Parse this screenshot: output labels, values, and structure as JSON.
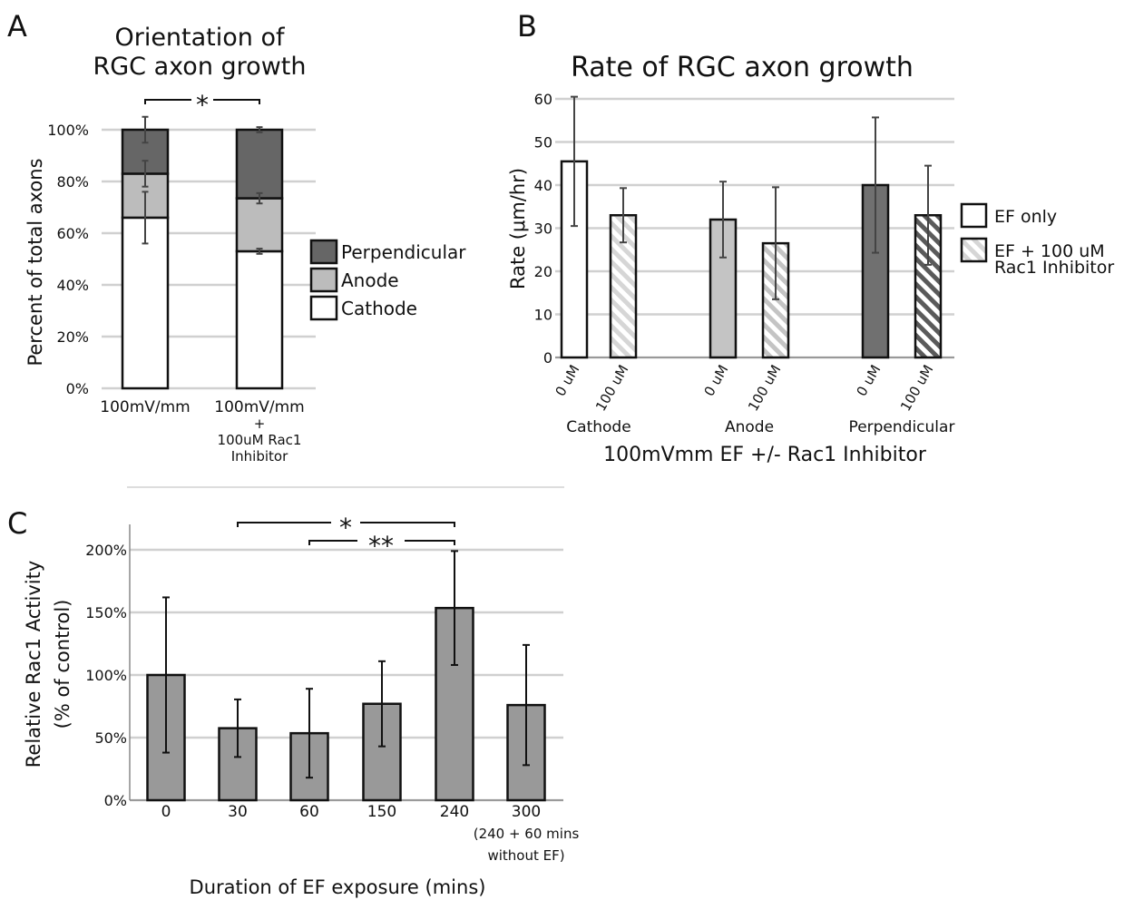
{
  "chart_data": [
    {
      "panel": "A",
      "type": "bar",
      "stacked": true,
      "title": "Orientation of RGC axon growth",
      "title_lines": [
        "Orientation of",
        "RGC axon growth"
      ],
      "ylabel": "Percent of total axons",
      "xlabel": "",
      "ylim": [
        0,
        100
      ],
      "yticks": [
        "0%",
        "20%",
        "40%",
        "60%",
        "80%",
        "100%"
      ],
      "categories": [
        {
          "lines": [
            "100mV/mm"
          ]
        },
        {
          "lines": [
            "100mV/mm",
            "+",
            "100uM Rac1",
            "Inhibitor"
          ]
        }
      ],
      "series": [
        {
          "name": "Cathode",
          "color": "#ffffff",
          "values": [
            66,
            53
          ],
          "err": [
            10,
            1
          ]
        },
        {
          "name": "Anode",
          "color": "#bcbcbc",
          "values": [
            17,
            20.5
          ],
          "err": [
            5,
            2
          ]
        },
        {
          "name": "Perpendicular",
          "color": "#666666",
          "values": [
            17,
            26.5
          ],
          "err": [
            5,
            1
          ]
        }
      ],
      "legend_order": [
        "Perpendicular",
        "Anode",
        "Cathode"
      ],
      "legend_position": "right",
      "grid": true,
      "significance": [
        {
          "from": 0,
          "to": 1,
          "label": "*"
        }
      ]
    },
    {
      "panel": "B",
      "type": "bar",
      "title": "Rate of RGC axon growth",
      "ylabel": "Rate (μm/hr)",
      "xlabel": "100mVmm EF +/- Rac1 Inhibitor",
      "ylim": [
        0,
        60
      ],
      "yticks": [
        "0",
        "10",
        "20",
        "30",
        "40",
        "50",
        "60"
      ],
      "groups": [
        {
          "label": "Cathode",
          "color": "#ffffff",
          "stripe": "#d6d6d6",
          "bars": [
            {
              "tick": "0 uM",
              "value": 45.5,
              "err": 15
            },
            {
              "tick": "100 uM",
              "value": 33,
              "err": 6.3
            }
          ]
        },
        {
          "label": "Anode",
          "color": "#c4c4c4",
          "stripe": "#c4c4c4",
          "bars": [
            {
              "tick": "0 uM",
              "value": 32,
              "err": 8.8
            },
            {
              "tick": "100 uM",
              "value": 26.5,
              "err": 13
            }
          ]
        },
        {
          "label": "Perpendicular",
          "color": "#707070",
          "stripe": "#5a5a5a",
          "bars": [
            {
              "tick": "0 uM",
              "value": 40,
              "err": 15.7
            },
            {
              "tick": "100 uM",
              "value": 33,
              "err": 11.5
            }
          ]
        }
      ],
      "legend": [
        {
          "lines": [
            "EF only"
          ],
          "pattern": "solid"
        },
        {
          "lines": [
            "EF + 100 uM",
            "Rac1 Inhibitor"
          ],
          "pattern": "striped"
        }
      ],
      "legend_position": "right",
      "grid": true
    },
    {
      "panel": "C",
      "type": "bar",
      "ylabel_lines": [
        "Relative Rac1 Activity",
        "(% of control)"
      ],
      "xlabel": "Duration of EF exposure (mins)",
      "ylim": [
        0,
        200
      ],
      "yticks": [
        "0%",
        "50%",
        "100%",
        "150%",
        "200%"
      ],
      "categories": [
        {
          "lines": [
            "0"
          ]
        },
        {
          "lines": [
            "30"
          ]
        },
        {
          "lines": [
            "60"
          ]
        },
        {
          "lines": [
            "150"
          ]
        },
        {
          "lines": [
            "240"
          ]
        },
        {
          "lines": [
            "300",
            "(240 + 60 mins",
            "without EF)"
          ]
        }
      ],
      "values": [
        100,
        57.5,
        53.5,
        77,
        153.5,
        76
      ],
      "err": [
        62,
        23,
        35.5,
        34,
        45.5,
        48
      ],
      "color": "#999999",
      "grid": true,
      "significance": [
        {
          "from": 1,
          "to": 4,
          "label": "*"
        },
        {
          "from": 2,
          "to": 4,
          "label": "**"
        }
      ]
    }
  ],
  "panel_letters": [
    "A",
    "B",
    "C"
  ]
}
